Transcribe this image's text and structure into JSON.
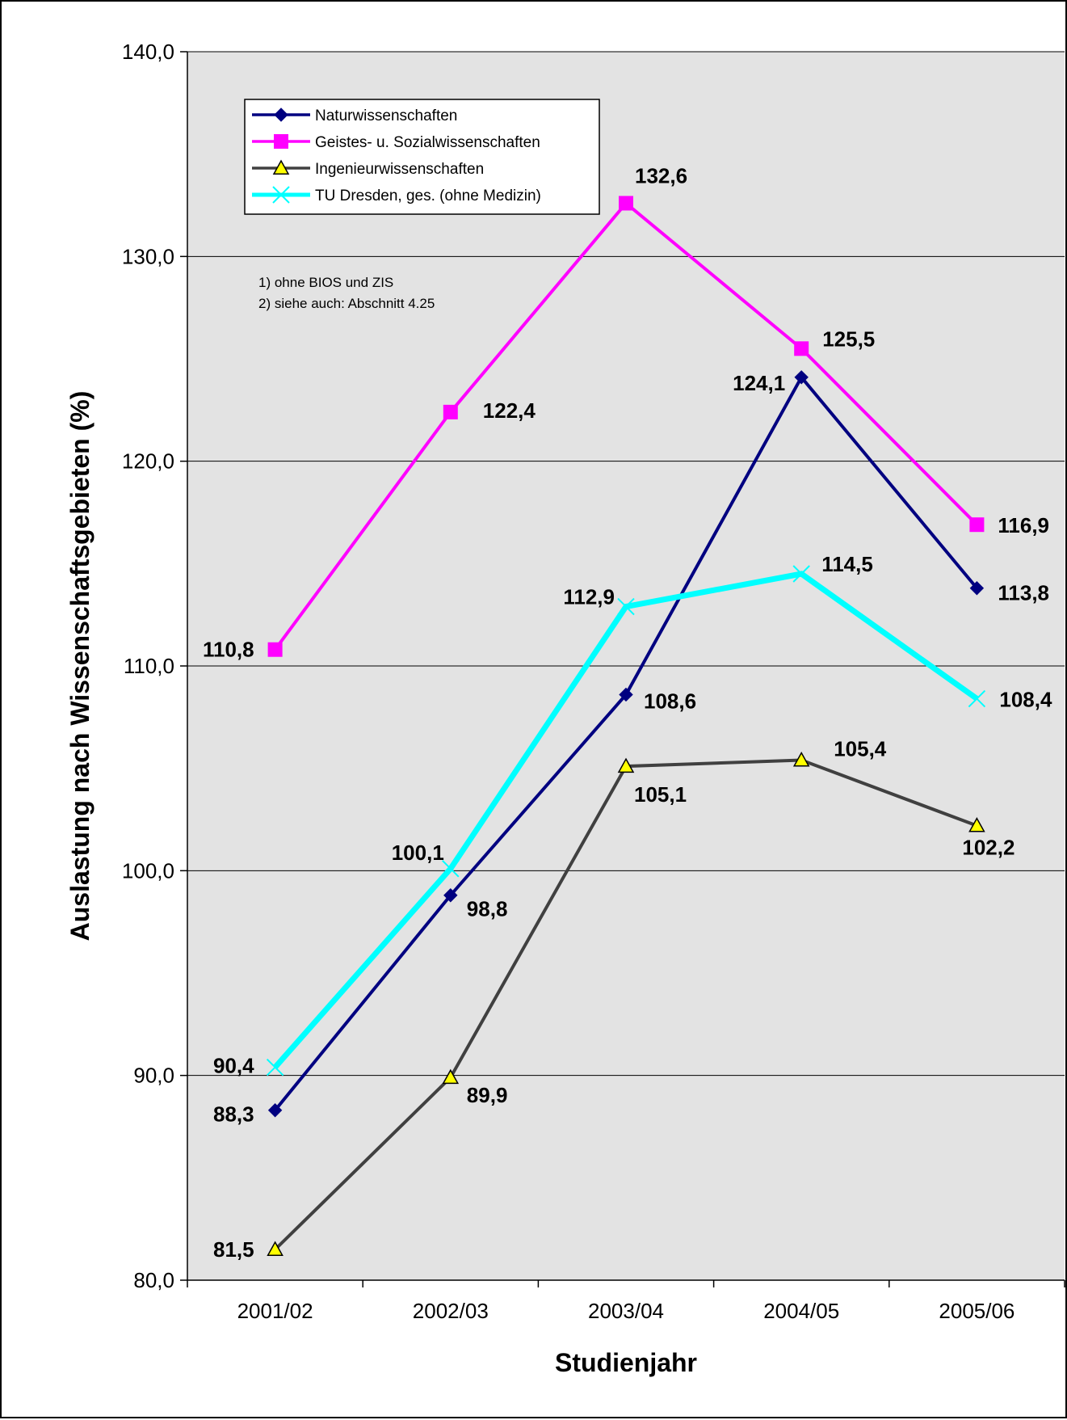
{
  "chart_data": {
    "type": "line",
    "title": "",
    "xlabel": "Studienjahr",
    "ylabel": "Auslastung nach Wissenschaftsgebieten (%)",
    "ylim": [
      80,
      140
    ],
    "yticks": [
      "80,0",
      "90,0",
      "100,0",
      "110,0",
      "120,0",
      "130,0",
      "140,0"
    ],
    "ytick_values": [
      80,
      90,
      100,
      110,
      120,
      130,
      140
    ],
    "categories": [
      "2001/02",
      "2002/03",
      "2003/04",
      "2004/05",
      "2005/06"
    ],
    "grid": true,
    "legend_position": "top-left",
    "series": [
      {
        "name": "Naturwissenschaften",
        "color": "#000080",
        "marker": "diamond",
        "values": [
          88.3,
          98.8,
          108.6,
          124.1,
          113.8
        ],
        "labels": [
          "88,3",
          "98,8",
          "108,6",
          "124,1",
          "113,8"
        ]
      },
      {
        "name": "Geistes- u. Sozialwissenschaften",
        "color": "#ff00ff",
        "marker": "square",
        "values": [
          110.8,
          122.4,
          132.6,
          125.5,
          116.9
        ],
        "labels": [
          "110,8",
          "122,4",
          "132,6",
          "125,5",
          "116,9"
        ]
      },
      {
        "name": "Ingenieurwissenschaften",
        "color": "#404040",
        "marker_fill": "#ffff00",
        "marker": "triangle",
        "values": [
          81.5,
          89.9,
          105.1,
          105.4,
          102.2
        ],
        "labels": [
          "81,5",
          "89,9",
          "105,1",
          "105,4",
          "102,2"
        ]
      },
      {
        "name": "TU Dresden, ges. (ohne Medizin)",
        "color": "#00ffff",
        "marker": "x",
        "values": [
          90.4,
          100.1,
          112.9,
          114.5,
          108.4
        ],
        "labels": [
          "90,4",
          "100,1",
          "112,9",
          "114,5",
          "108,4"
        ]
      }
    ],
    "annotations": [
      "1) ohne BIOS und ZIS",
      "2) siehe auch: Abschnitt 4.25"
    ],
    "plot_background": "#e3e3e3"
  }
}
